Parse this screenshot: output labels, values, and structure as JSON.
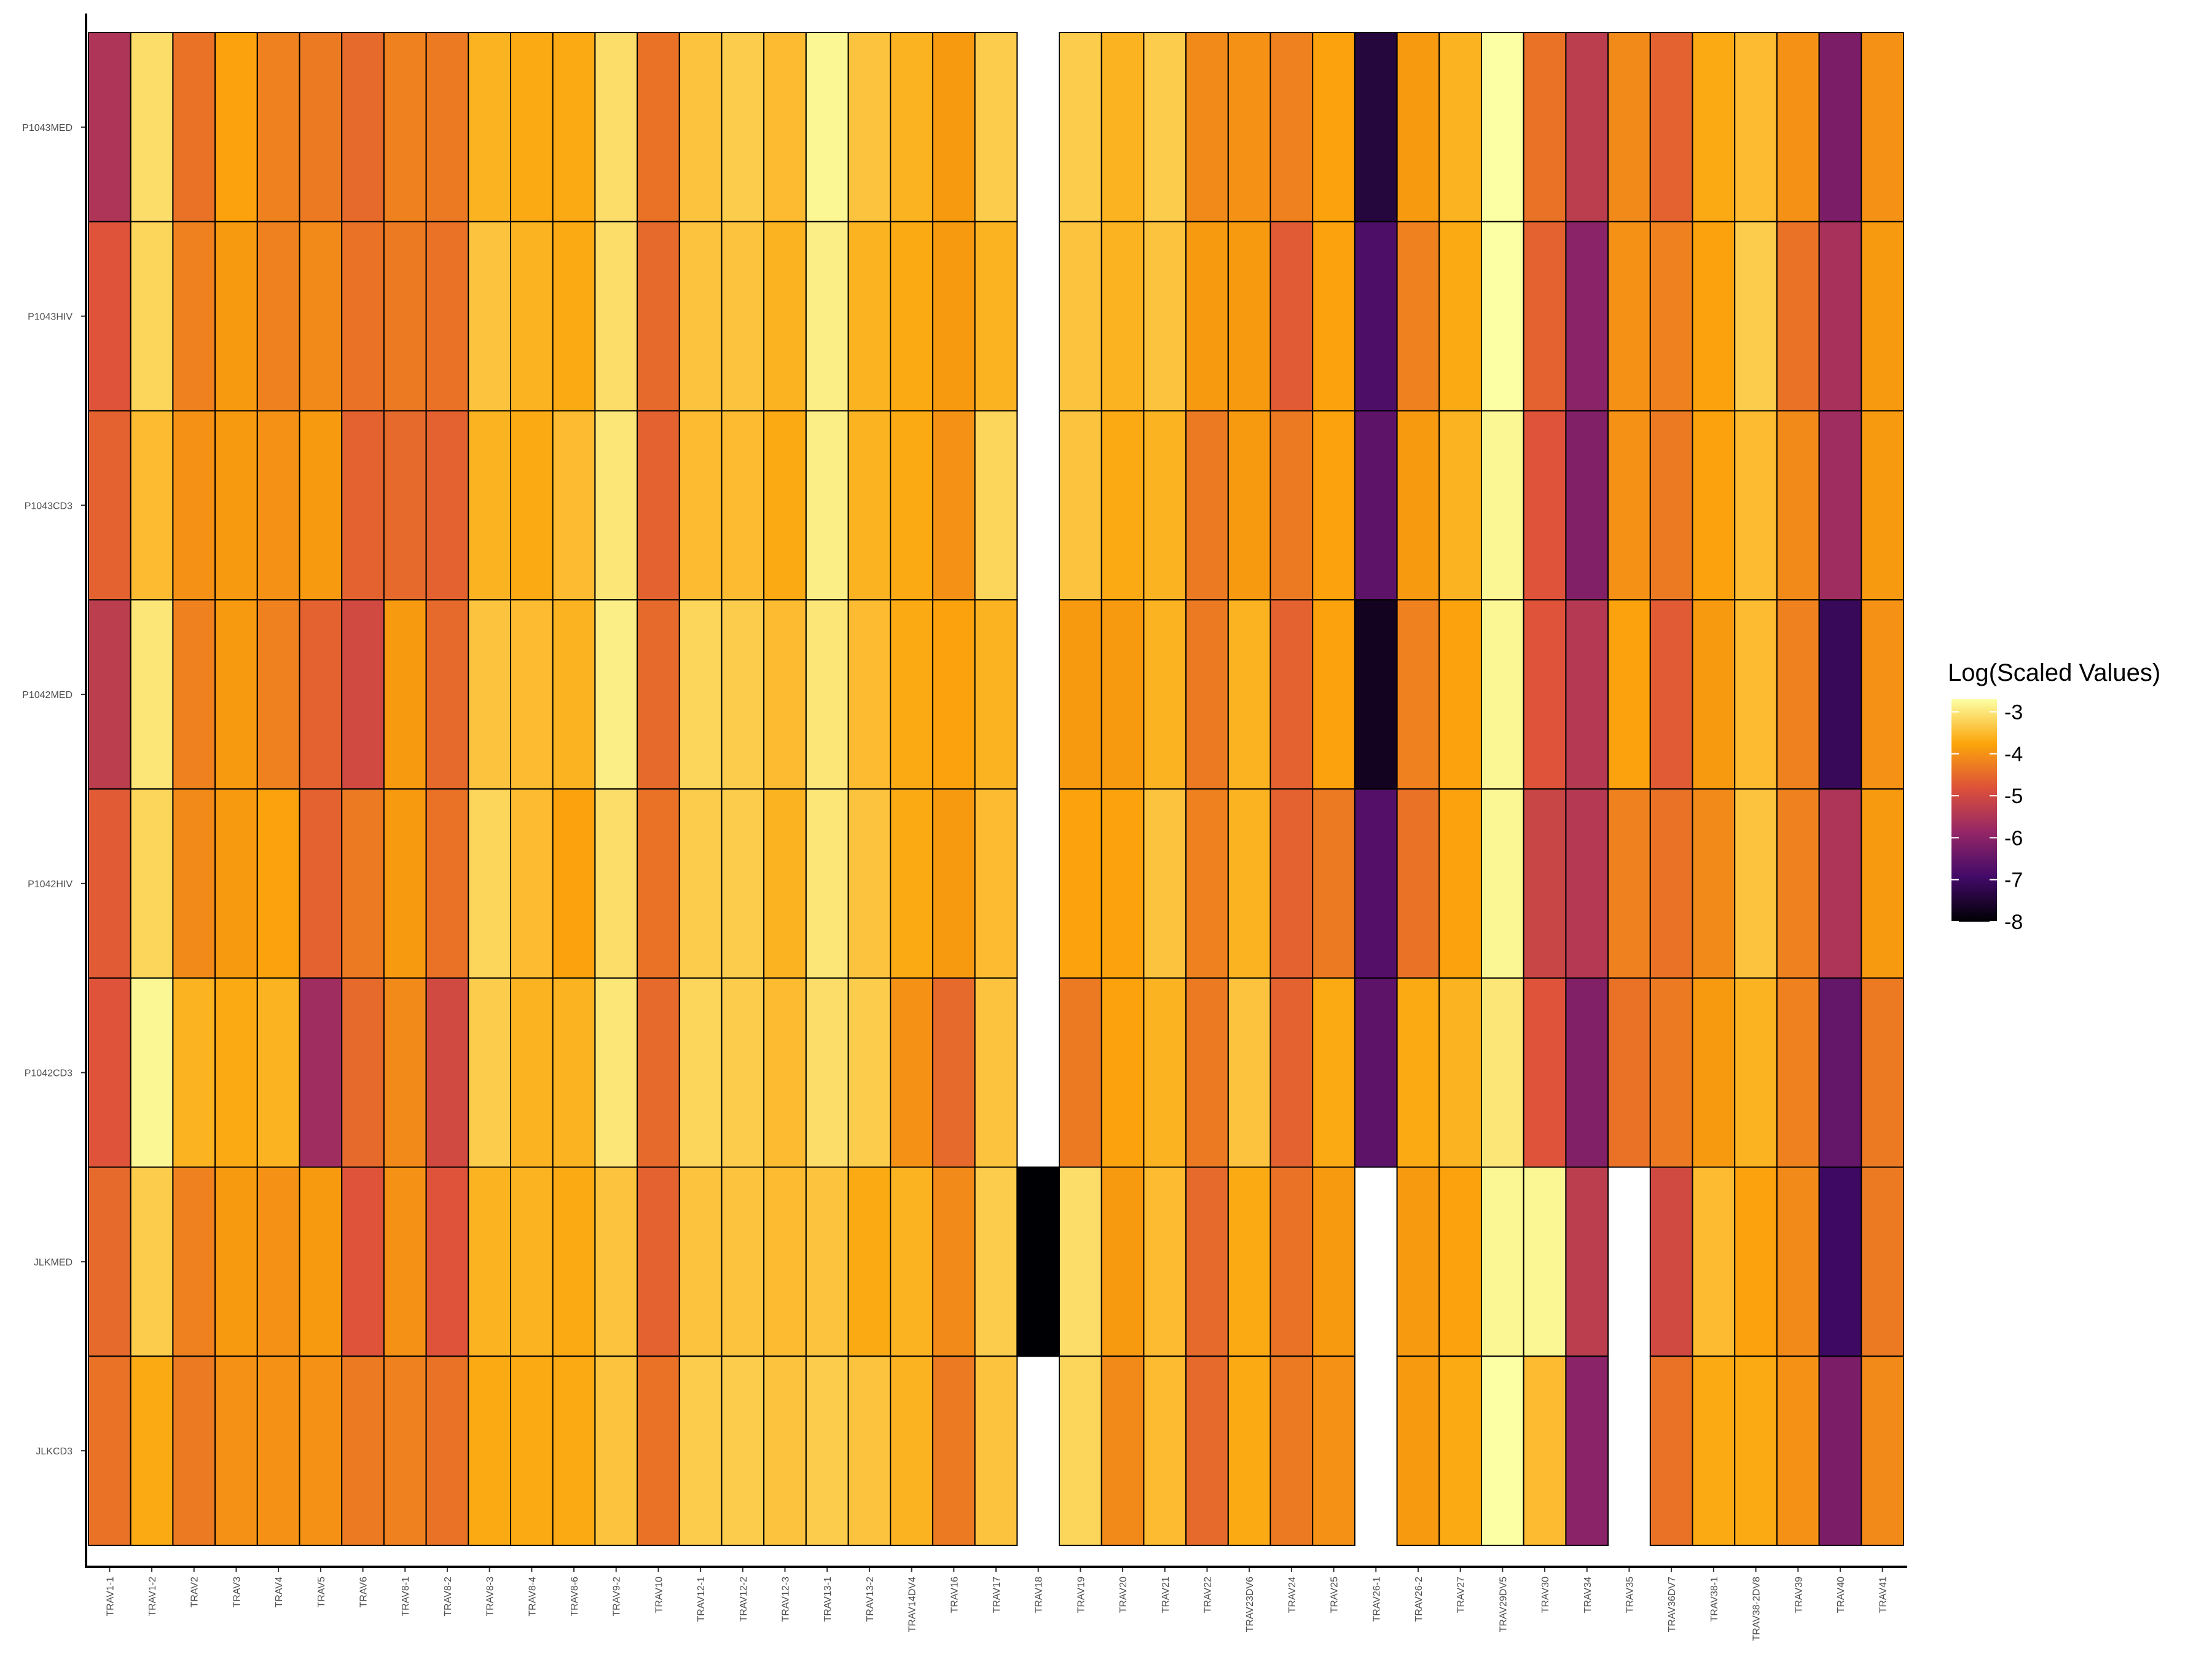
{
  "chart_data": {
    "type": "heatmap",
    "title": "",
    "xlabel": "",
    "ylabel": "",
    "x": [
      "TRAV1-1",
      "TRAV1-2",
      "TRAV2",
      "TRAV3",
      "TRAV4",
      "TRAV5",
      "TRAV6",
      "TRAV8-1",
      "TRAV8-2",
      "TRAV8-3",
      "TRAV8-4",
      "TRAV8-6",
      "TRAV9-2",
      "TRAV10",
      "TRAV12-1",
      "TRAV12-2",
      "TRAV12-3",
      "TRAV13-1",
      "TRAV13-2",
      "TRAV14DV4",
      "TRAV16",
      "TRAV17",
      "TRAV18",
      "TRAV19",
      "TRAV20",
      "TRAV21",
      "TRAV22",
      "TRAV23DV6",
      "TRAV24",
      "TRAV25",
      "TRAV26-1",
      "TRAV26-2",
      "TRAV27",
      "TRAV29DV5",
      "TRAV30",
      "TRAV34",
      "TRAV35",
      "TRAV36DV7",
      "TRAV38-1",
      "TRAV38-2DV8",
      "TRAV39",
      "TRAV40",
      "TRAV41"
    ],
    "y": [
      "P1043MED",
      "P1043HIV",
      "P1043CD3",
      "P1042MED",
      "P1042HIV",
      "P1042CD3",
      "JLKMED",
      "JLKCD3"
    ],
    "values": [
      [
        -5.5,
        -3.1,
        -4.4,
        -3.8,
        -4.2,
        -4.3,
        -4.5,
        -4.2,
        -4.3,
        -3.6,
        -3.7,
        -3.7,
        -3.1,
        -4.4,
        -3.4,
        -3.3,
        -3.5,
        -2.8,
        -3.4,
        -3.6,
        -3.9,
        -3.3,
        null,
        -3.3,
        -3.6,
        -3.3,
        -4.1,
        -4.0,
        -4.2,
        -3.8,
        -7.4,
        -3.9,
        -3.6,
        -2.7,
        -4.4,
        -5.3,
        -4.1,
        -4.6,
        -3.7,
        -3.5,
        -4.0,
        -6.2,
        -4.0
      ],
      [
        -4.8,
        -3.2,
        -4.2,
        -3.9,
        -4.2,
        -4.1,
        -4.4,
        -4.3,
        -4.4,
        -3.4,
        -3.6,
        -3.7,
        -3.1,
        -4.5,
        -3.4,
        -3.4,
        -3.6,
        -2.9,
        -3.6,
        -3.7,
        -3.9,
        -3.6,
        null,
        -3.4,
        -3.6,
        -3.4,
        -3.9,
        -3.9,
        -4.7,
        -3.8,
        -6.8,
        -4.2,
        -3.7,
        -2.7,
        -4.6,
        -6.0,
        -4.0,
        -4.2,
        -3.8,
        -3.3,
        -4.4,
        -5.6,
        -3.9
      ],
      [
        -4.6,
        -3.5,
        -4.0,
        -3.9,
        -4.0,
        -3.9,
        -4.6,
        -4.5,
        -4.6,
        -3.6,
        -3.7,
        -3.5,
        -3.0,
        -4.6,
        -3.5,
        -3.5,
        -3.7,
        -2.9,
        -3.6,
        -3.7,
        -4.0,
        -3.2,
        null,
        -3.4,
        -3.7,
        -3.6,
        -4.3,
        -3.9,
        -4.3,
        -3.8,
        -6.6,
        -3.9,
        -3.6,
        -2.8,
        -4.8,
        -6.1,
        -4.0,
        -4.3,
        -3.8,
        -3.5,
        -4.1,
        -5.7,
        -3.9
      ],
      [
        -5.3,
        -3.0,
        -4.2,
        -3.9,
        -4.2,
        -4.6,
        -5.0,
        -3.9,
        -4.5,
        -3.4,
        -3.5,
        -3.6,
        -2.9,
        -4.5,
        -3.2,
        -3.3,
        -3.5,
        -3.0,
        -3.5,
        -3.7,
        -3.8,
        -3.6,
        null,
        -3.9,
        -3.9,
        -3.6,
        -4.3,
        -3.6,
        -4.6,
        -3.8,
        -7.7,
        -4.2,
        -3.8,
        -2.8,
        -4.8,
        -5.4,
        -3.8,
        -4.7,
        -3.9,
        -3.5,
        -4.2,
        -7.1,
        -4.0
      ],
      [
        -4.7,
        -3.2,
        -4.1,
        -3.9,
        -3.8,
        -4.6,
        -4.3,
        -3.9,
        -4.4,
        -3.2,
        -3.5,
        -3.8,
        -3.1,
        -4.4,
        -3.3,
        -3.3,
        -3.6,
        -3.0,
        -3.4,
        -3.7,
        -3.9,
        -3.5,
        null,
        -3.8,
        -3.8,
        -3.4,
        -4.2,
        -3.6,
        -4.6,
        -4.3,
        -6.7,
        -4.4,
        -3.8,
        -2.8,
        -5.1,
        -5.4,
        -4.2,
        -4.4,
        -4.1,
        -3.4,
        -4.2,
        -5.5,
        -3.9
      ],
      [
        -4.8,
        -2.8,
        -3.6,
        -3.7,
        -3.6,
        -5.7,
        -4.5,
        -4.1,
        -5.0,
        -3.3,
        -3.6,
        -3.6,
        -3.0,
        -4.5,
        -3.2,
        -3.3,
        -3.5,
        -3.1,
        -3.3,
        -4.0,
        -4.5,
        -3.4,
        null,
        -4.3,
        -3.8,
        -3.6,
        -4.3,
        -3.4,
        -4.6,
        -3.7,
        -6.6,
        -3.7,
        -3.6,
        -3.0,
        -4.8,
        -6.1,
        -4.4,
        -4.3,
        -3.9,
        -3.6,
        -4.2,
        -6.5,
        -4.3
      ],
      [
        -4.5,
        -3.3,
        -4.2,
        -3.9,
        -4.0,
        -3.9,
        -4.8,
        -4.0,
        -4.8,
        -3.6,
        -3.6,
        -3.7,
        -3.4,
        -4.6,
        -3.4,
        -3.4,
        -3.5,
        -3.4,
        -3.7,
        -3.6,
        -4.1,
        -3.3,
        -8.0,
        -3.1,
        -3.9,
        -3.5,
        -4.5,
        -3.7,
        -4.4,
        -3.9,
        null,
        -3.9,
        -3.8,
        -2.8,
        -2.8,
        -5.3,
        null,
        -5.0,
        -3.5,
        -3.8,
        -4.1,
        -7.0,
        -4.3
      ],
      [
        -4.4,
        -3.7,
        -4.3,
        -4.0,
        -4.0,
        -4.0,
        -4.3,
        -4.2,
        -4.4,
        -3.7,
        -3.7,
        -3.7,
        -3.4,
        -4.4,
        -3.3,
        -3.3,
        -3.4,
        -3.3,
        -3.4,
        -3.6,
        -4.3,
        -3.4,
        null,
        -3.2,
        -4.1,
        -3.5,
        -4.5,
        -3.7,
        -4.3,
        -4.0,
        null,
        -3.9,
        -3.7,
        -2.7,
        -3.5,
        -6.0,
        null,
        -4.4,
        -3.7,
        -3.7,
        -4.0,
        -6.2,
        -4.1
      ]
    ],
    "colorbar": {
      "title": "Log(Scaled Values)",
      "ticks": [
        -3,
        -4,
        -5,
        -6,
        -7,
        -8
      ],
      "tick_labels": [
        "-3",
        "-4",
        "-5",
        "-6",
        "-7",
        "-8"
      ],
      "min": -8.0,
      "max": -2.7,
      "colormap": "inferno",
      "stops": [
        "#000004",
        "#420a68",
        "#932667",
        "#dd513a",
        "#fca50a",
        "#fcffa4"
      ]
    },
    "grid": false,
    "legend_position": "right"
  }
}
